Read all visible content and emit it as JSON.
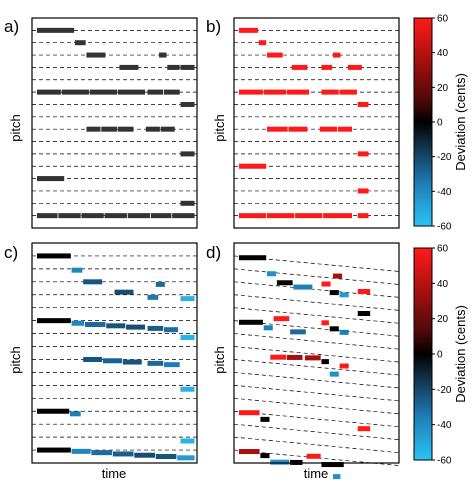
{
  "chart_data": [
    {
      "id": "a",
      "type": "piano-roll",
      "panel_label": "a)",
      "xlabel": "",
      "ylabel": "pitch",
      "staff_shape": "flat",
      "color_mode": "gray",
      "segments": [
        {
          "t0": 0.3,
          "t1": 2.6,
          "p": 15.0
        },
        {
          "t0": 2.6,
          "t1": 3.3,
          "p": 14.0
        },
        {
          "t0": 3.3,
          "t1": 4.5,
          "p": 13.0
        },
        {
          "t0": 5.3,
          "t1": 6.5,
          "p": 12.0
        },
        {
          "t0": 7.7,
          "t1": 8.2,
          "p": 13.0
        },
        {
          "t0": 8.2,
          "t1": 9.0,
          "p": 12.0
        },
        {
          "t0": 9.0,
          "t1": 9.9,
          "p": 12.0
        },
        {
          "t0": 0.3,
          "t1": 1.8,
          "p": 10.0
        },
        {
          "t0": 1.8,
          "t1": 3.5,
          "p": 10.0
        },
        {
          "t0": 3.5,
          "t1": 5.2,
          "p": 10.0
        },
        {
          "t0": 5.2,
          "t1": 6.9,
          "p": 10.0
        },
        {
          "t0": 7.0,
          "t1": 8.0,
          "p": 10.0
        },
        {
          "t0": 8.0,
          "t1": 9.0,
          "p": 10.0
        },
        {
          "t0": 9.0,
          "t1": 9.9,
          "p": 9.0
        },
        {
          "t0": 3.3,
          "t1": 4.2,
          "p": 7.0
        },
        {
          "t0": 4.2,
          "t1": 5.2,
          "p": 7.0
        },
        {
          "t0": 5.2,
          "t1": 6.2,
          "p": 7.0
        },
        {
          "t0": 6.9,
          "t1": 7.8,
          "p": 7.0
        },
        {
          "t0": 7.8,
          "t1": 8.7,
          "p": 7.0
        },
        {
          "t0": 9.0,
          "t1": 9.9,
          "p": 5.0
        },
        {
          "t0": 0.3,
          "t1": 2.0,
          "p": 3.0
        },
        {
          "t0": 9.0,
          "t1": 9.9,
          "p": 1.0
        },
        {
          "t0": 0.3,
          "t1": 1.6,
          "p": 0.0
        },
        {
          "t0": 1.6,
          "t1": 3.0,
          "p": 0.0
        },
        {
          "t0": 3.0,
          "t1": 4.4,
          "p": 0.0
        },
        {
          "t0": 4.4,
          "t1": 5.8,
          "p": 0.0
        },
        {
          "t0": 5.8,
          "t1": 7.2,
          "p": 0.0
        },
        {
          "t0": 7.2,
          "t1": 8.5,
          "p": 0.0
        },
        {
          "t0": 8.5,
          "t1": 9.9,
          "p": 0.0
        }
      ]
    },
    {
      "id": "b",
      "type": "piano-roll",
      "panel_label": "b)",
      "xlabel": "",
      "ylabel": "pitch",
      "staff_shape": "flat",
      "color_mode": "deviation",
      "segments": [
        {
          "t0": 0.3,
          "t1": 1.5,
          "p": 15.0,
          "dev": 60
        },
        {
          "t0": 1.5,
          "t1": 2.0,
          "p": 14.0,
          "dev": 60
        },
        {
          "t0": 2.0,
          "t1": 3.0,
          "p": 13.0,
          "dev": 60
        },
        {
          "t0": 3.5,
          "t1": 4.5,
          "p": 12.0,
          "dev": 60
        },
        {
          "t0": 5.3,
          "t1": 6.0,
          "p": 12.0,
          "dev": 60
        },
        {
          "t0": 6.0,
          "t1": 6.5,
          "p": 13.0,
          "dev": 60
        },
        {
          "t0": 6.9,
          "t1": 7.8,
          "p": 12.0,
          "dev": 60
        },
        {
          "t0": 0.3,
          "t1": 1.8,
          "p": 10.0,
          "dev": 60
        },
        {
          "t0": 1.8,
          "t1": 3.2,
          "p": 10.0,
          "dev": 60
        },
        {
          "t0": 3.2,
          "t1": 4.6,
          "p": 10.0,
          "dev": 60
        },
        {
          "t0": 5.3,
          "t1": 6.4,
          "p": 10.0,
          "dev": 60
        },
        {
          "t0": 6.4,
          "t1": 7.5,
          "p": 10.0,
          "dev": 60
        },
        {
          "t0": 7.5,
          "t1": 8.2,
          "p": 9.0,
          "dev": 60
        },
        {
          "t0": 2.0,
          "t1": 3.3,
          "p": 7.0,
          "dev": 60
        },
        {
          "t0": 3.3,
          "t1": 4.5,
          "p": 7.0,
          "dev": 60
        },
        {
          "t0": 5.2,
          "t1": 6.3,
          "p": 7.0,
          "dev": 60
        },
        {
          "t0": 6.3,
          "t1": 7.2,
          "p": 7.0,
          "dev": 60
        },
        {
          "t0": 7.5,
          "t1": 8.2,
          "p": 5.0,
          "dev": 60
        },
        {
          "t0": 0.3,
          "t1": 2.0,
          "p": 4.0,
          "dev": 60
        },
        {
          "t0": 7.5,
          "t1": 8.2,
          "p": 2.0,
          "dev": 60
        },
        {
          "t0": 0.3,
          "t1": 2.0,
          "p": 0.0,
          "dev": 60
        },
        {
          "t0": 2.0,
          "t1": 3.7,
          "p": 0.0,
          "dev": 60
        },
        {
          "t0": 3.7,
          "t1": 5.4,
          "p": 0.0,
          "dev": 60
        },
        {
          "t0": 5.4,
          "t1": 7.2,
          "p": 0.0,
          "dev": 60
        },
        {
          "t0": 7.5,
          "t1": 8.2,
          "p": 0.0,
          "dev": 60
        }
      ]
    },
    {
      "id": "c",
      "type": "piano-roll",
      "panel_label": "c)",
      "xlabel": "time",
      "ylabel": "pitch",
      "staff_shape": "flat",
      "color_mode": "deviation",
      "segments": [
        {
          "t0": 0.3,
          "t1": 2.4,
          "p": 15.0,
          "dev": 0
        },
        {
          "t0": 2.4,
          "t1": 3.1,
          "p": 13.9,
          "dev": -42
        },
        {
          "t0": 3.1,
          "t1": 4.3,
          "p": 13.0,
          "dev": -30
        },
        {
          "t0": 5.0,
          "t1": 6.2,
          "p": 12.2,
          "dev": -28
        },
        {
          "t0": 7.5,
          "t1": 8.1,
          "p": 12.8,
          "dev": -35
        },
        {
          "t0": 7.0,
          "t1": 7.7,
          "p": 11.8,
          "dev": -38
        },
        {
          "t0": 9.0,
          "t1": 9.9,
          "p": 11.7,
          "dev": -55
        },
        {
          "t0": 0.3,
          "t1": 2.4,
          "p": 10.0,
          "dev": 0
        },
        {
          "t0": 2.4,
          "t1": 3.2,
          "p": 9.8,
          "dev": -42
        },
        {
          "t0": 3.2,
          "t1": 4.5,
          "p": 9.7,
          "dev": -35
        },
        {
          "t0": 4.5,
          "t1": 5.7,
          "p": 9.6,
          "dev": -30
        },
        {
          "t0": 5.7,
          "t1": 6.9,
          "p": 9.5,
          "dev": -28
        },
        {
          "t0": 7.0,
          "t1": 8.0,
          "p": 9.4,
          "dev": -32
        },
        {
          "t0": 8.0,
          "t1": 8.9,
          "p": 9.3,
          "dev": -36
        },
        {
          "t0": 9.0,
          "t1": 9.9,
          "p": 8.7,
          "dev": -55
        },
        {
          "t0": 3.1,
          "t1": 4.3,
          "p": 7.0,
          "dev": -30
        },
        {
          "t0": 4.3,
          "t1": 5.5,
          "p": 6.9,
          "dev": -33
        },
        {
          "t0": 5.5,
          "t1": 6.7,
          "p": 6.8,
          "dev": -30
        },
        {
          "t0": 7.0,
          "t1": 8.0,
          "p": 6.7,
          "dev": -34
        },
        {
          "t0": 8.0,
          "t1": 9.0,
          "p": 6.6,
          "dev": -40
        },
        {
          "t0": 9.0,
          "t1": 9.9,
          "p": 4.7,
          "dev": -55
        },
        {
          "t0": 0.3,
          "t1": 2.3,
          "p": 3.0,
          "dev": 0
        },
        {
          "t0": 2.3,
          "t1": 3.0,
          "p": 2.8,
          "dev": -40
        },
        {
          "t0": 9.0,
          "t1": 9.9,
          "p": 0.7,
          "dev": -55
        },
        {
          "t0": 0.3,
          "t1": 2.4,
          "p": 0.0,
          "dev": 0
        },
        {
          "t0": 2.4,
          "t1": 3.6,
          "p": -0.1,
          "dev": -42
        },
        {
          "t0": 3.6,
          "t1": 4.9,
          "p": -0.2,
          "dev": -36
        },
        {
          "t0": 4.9,
          "t1": 6.2,
          "p": -0.3,
          "dev": -32
        },
        {
          "t0": 6.2,
          "t1": 7.5,
          "p": -0.4,
          "dev": -28
        },
        {
          "t0": 7.5,
          "t1": 8.8,
          "p": -0.5,
          "dev": -30
        },
        {
          "t0": 8.8,
          "t1": 9.9,
          "p": -0.6,
          "dev": -48
        }
      ]
    },
    {
      "id": "d",
      "type": "piano-roll",
      "panel_label": "d)",
      "xlabel": "time",
      "ylabel": "pitch",
      "staff_shape": "sloped",
      "color_mode": "deviation",
      "segments": [
        {
          "t0": 0.3,
          "t1": 2.0,
          "p": 15.0,
          "dev": 0
        },
        {
          "t0": 2.0,
          "t1": 2.6,
          "p": 13.9,
          "dev": -45
        },
        {
          "t0": 2.6,
          "t1": 3.6,
          "p": 13.3,
          "dev": 0
        },
        {
          "t0": 3.6,
          "t1": 4.8,
          "p": 13.1,
          "dev": -40
        },
        {
          "t0": 5.3,
          "t1": 5.9,
          "p": 13.5,
          "dev": 60
        },
        {
          "t0": 6.0,
          "t1": 6.6,
          "p": 14.2,
          "dev": 40
        },
        {
          "t0": 5.8,
          "t1": 6.4,
          "p": 12.9,
          "dev": 0
        },
        {
          "t0": 6.4,
          "t1": 7.0,
          "p": 12.8,
          "dev": -48
        },
        {
          "t0": 7.5,
          "t1": 8.3,
          "p": 13.2,
          "dev": 60
        },
        {
          "t0": 7.5,
          "t1": 8.3,
          "p": 11.5,
          "dev": 0
        },
        {
          "t0": 0.3,
          "t1": 1.8,
          "p": 10.0,
          "dev": 0
        },
        {
          "t0": 1.8,
          "t1": 2.4,
          "p": 9.7,
          "dev": -40
        },
        {
          "t0": 2.4,
          "t1": 3.4,
          "p": 10.5,
          "dev": 60
        },
        {
          "t0": 3.4,
          "t1": 4.4,
          "p": 9.6,
          "dev": -35
        },
        {
          "t0": 5.3,
          "t1": 5.8,
          "p": 10.5,
          "dev": 60
        },
        {
          "t0": 5.8,
          "t1": 6.4,
          "p": 10.1,
          "dev": 0
        },
        {
          "t0": 6.4,
          "t1": 7.0,
          "p": 9.9,
          "dev": -40
        },
        {
          "t0": 2.2,
          "t1": 3.2,
          "p": 7.5,
          "dev": 60
        },
        {
          "t0": 3.2,
          "t1": 4.2,
          "p": 7.6,
          "dev": 40
        },
        {
          "t0": 4.3,
          "t1": 5.3,
          "p": 7.7,
          "dev": 40
        },
        {
          "t0": 5.3,
          "t1": 5.8,
          "p": 7.5,
          "dev": 0
        },
        {
          "t0": 5.8,
          "t1": 6.4,
          "p": 6.6,
          "dev": -45
        },
        {
          "t0": 6.4,
          "t1": 7.0,
          "p": 7.3,
          "dev": 60
        },
        {
          "t0": 0.3,
          "t1": 1.6,
          "p": 3.0,
          "dev": 60
        },
        {
          "t0": 1.6,
          "t1": 2.2,
          "p": 2.6,
          "dev": 0
        },
        {
          "t0": 7.5,
          "t1": 8.3,
          "p": 2.6,
          "dev": 60
        },
        {
          "t0": 0.3,
          "t1": 1.6,
          "p": 0.0,
          "dev": 40
        },
        {
          "t0": 1.6,
          "t1": 2.2,
          "p": -0.2,
          "dev": 0
        },
        {
          "t0": 2.2,
          "t1": 3.4,
          "p": -0.6,
          "dev": -45
        },
        {
          "t0": 3.4,
          "t1": 4.2,
          "p": -0.5,
          "dev": 0
        },
        {
          "t0": 4.4,
          "t1": 5.3,
          "p": 0.1,
          "dev": 60
        },
        {
          "t0": 5.3,
          "t1": 6.7,
          "p": -0.4,
          "dev": 0
        },
        {
          "t0": 6.0,
          "t1": 6.5,
          "p": -1.3,
          "dev": -45
        }
      ]
    }
  ],
  "colorbars": [
    {
      "id": "cb-top",
      "title": "Deviation (cents)",
      "ticks": [
        "60",
        "40",
        "20",
        "0",
        "-20",
        "-40",
        "-60"
      ]
    },
    {
      "id": "cb-bottom",
      "title": "Deviation (cents)",
      "ticks": [
        "60",
        "40",
        "20",
        "0",
        "-20",
        "-40",
        "-60"
      ]
    }
  ],
  "colors": {
    "staff_line": "#000000",
    "note_gray": "#333333",
    "colormap": [
      "#2cc3f5",
      "#1e7fb8",
      "#102c40",
      "#000000",
      "#4a0909",
      "#a81010",
      "#ff1a1a"
    ]
  }
}
